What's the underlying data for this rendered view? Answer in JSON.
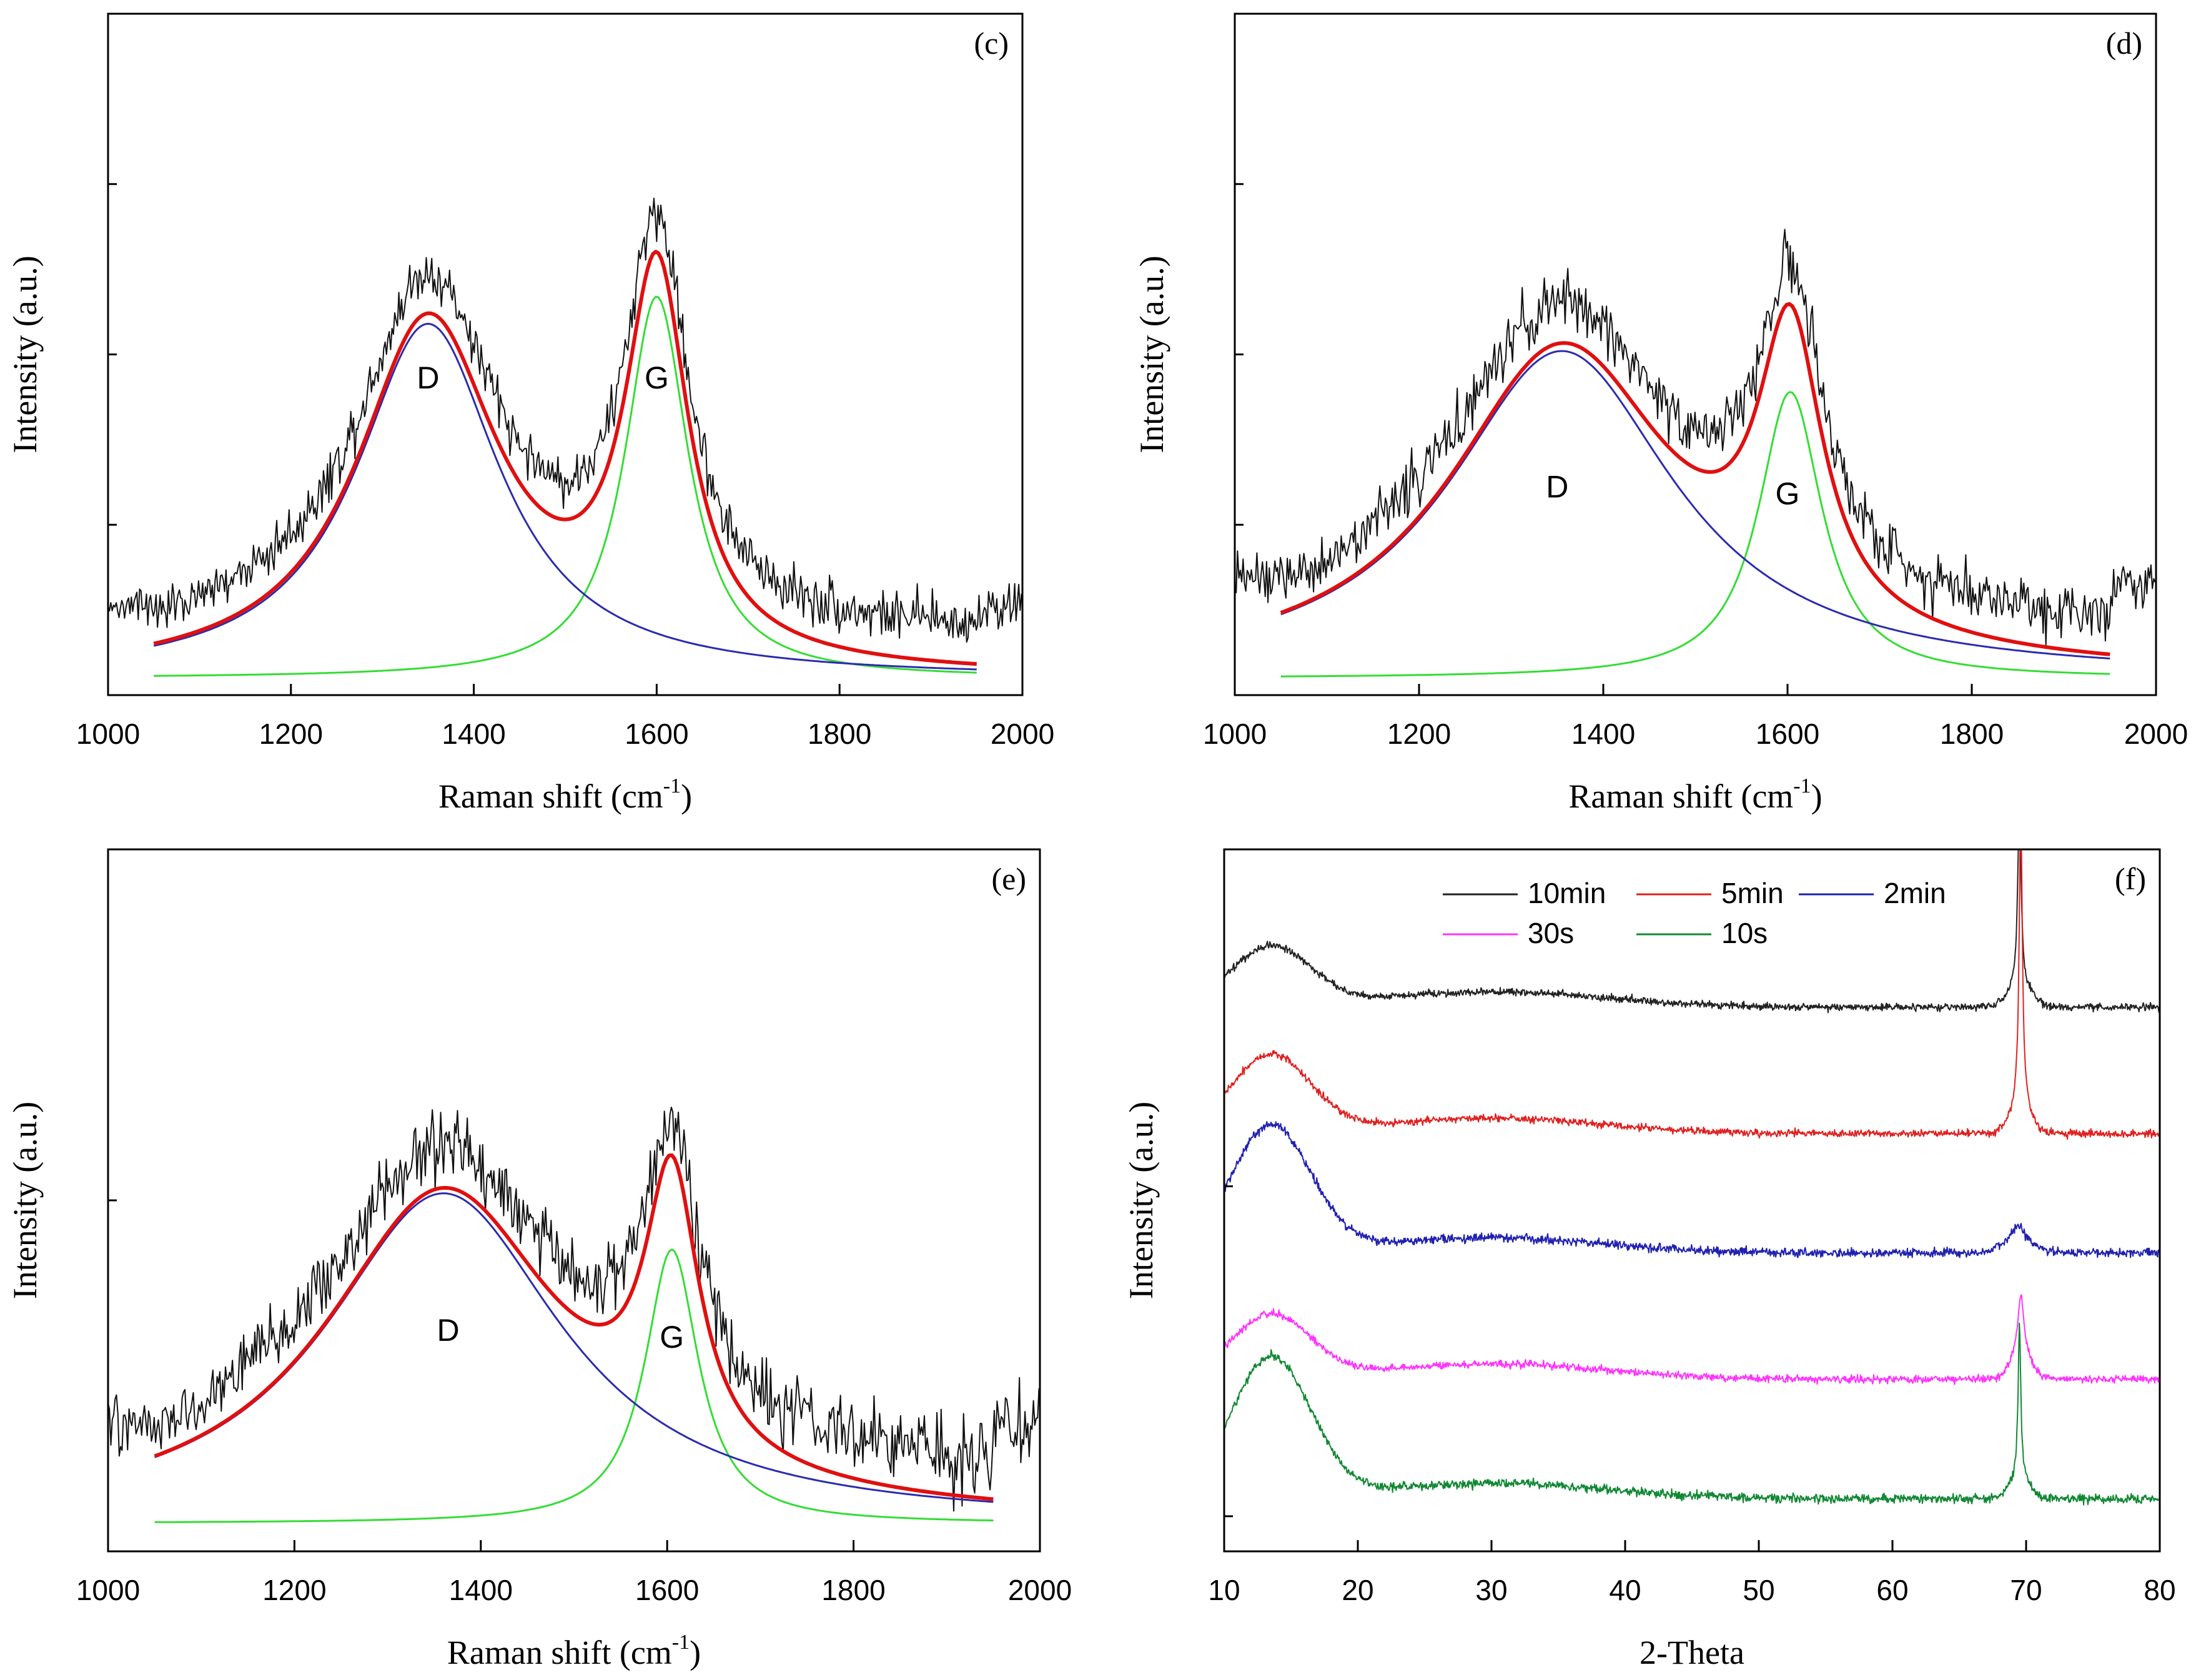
{
  "chart_data": [
    {
      "type": "line",
      "panel": "(c)",
      "xlabel": "Raman shift (cm",
      "xlabel_sup": "-1",
      "xlabel_close": ")",
      "ylabel": "Intensity (a.u.)",
      "xlim": [
        1000,
        2000
      ],
      "ylim": [
        0,
        100
      ],
      "xticks": [
        1000,
        1200,
        1400,
        1600,
        1800,
        2000
      ],
      "yticks": [
        25,
        50,
        75
      ],
      "peak_labels": [
        {
          "text": "D",
          "x": 1350,
          "y": 45
        },
        {
          "text": "G",
          "x": 1600,
          "y": 45
        }
      ],
      "fit_range": [
        1050,
        1950
      ],
      "background_noise": {
        "base": 13,
        "noise": 3.5,
        "x": [
          1000,
          2000
        ]
      },
      "series": [
        {
          "name": "raw",
          "color": "#111111",
          "kind": "noisy"
        },
        {
          "name": "D fit",
          "color": "#2b2bb0",
          "center": 1350,
          "hwhm": 95,
          "height": 52,
          "baseline": 2.5
        },
        {
          "name": "G fit",
          "color": "#33dd33",
          "center": 1600,
          "hwhm": 42,
          "height": 56,
          "baseline": 2.5
        },
        {
          "name": "sum fit",
          "color": "#e01010",
          "kind": "sum"
        }
      ]
    },
    {
      "type": "line",
      "panel": "(d)",
      "xlabel": "Raman shift (cm",
      "xlabel_sup": "-1",
      "xlabel_close": ")",
      "ylabel": "Intensity (a.u.)",
      "xlim": [
        1000,
        2000
      ],
      "ylim": [
        0,
        100
      ],
      "xticks": [
        1000,
        1200,
        1400,
        1600,
        1800,
        2000
      ],
      "yticks": [
        25,
        50,
        75
      ],
      "peak_labels": [
        {
          "text": "D",
          "x": 1350,
          "y": 29
        },
        {
          "text": "G",
          "x": 1600,
          "y": 28
        }
      ],
      "fit_range": [
        1050,
        1950
      ],
      "background_noise": {
        "base": 17,
        "noise": 4,
        "x": [
          1000,
          2000
        ]
      },
      "series": [
        {
          "name": "raw",
          "color": "#111111",
          "kind": "noisy"
        },
        {
          "name": "D fit",
          "color": "#2b2bb0",
          "center": 1355,
          "hwhm": 150,
          "height": 48,
          "baseline": 2.5
        },
        {
          "name": "G fit",
          "color": "#33dd33",
          "center": 1603,
          "hwhm": 42,
          "height": 42,
          "baseline": 2.5
        },
        {
          "name": "sum fit",
          "color": "#e01010",
          "kind": "sum"
        }
      ]
    },
    {
      "type": "line",
      "panel": "(e)",
      "xlabel": "Raman shift (cm",
      "xlabel_sup": "-1",
      "xlabel_close": ")",
      "ylabel": "Intensity (a.u.)",
      "xlim": [
        1000,
        2000
      ],
      "ylim": [
        0,
        100
      ],
      "xticks": [
        1000,
        1200,
        1400,
        1600,
        1800,
        2000
      ],
      "yticks": [
        50
      ],
      "peak_labels": [
        {
          "text": "D",
          "x": 1365,
          "y": 30
        },
        {
          "text": "G",
          "x": 1605,
          "y": 29
        }
      ],
      "fit_range": [
        1050,
        1950
      ],
      "background_noise": {
        "base": 18,
        "noise": 5,
        "x": [
          1000,
          2000
        ]
      },
      "series": [
        {
          "name": "raw",
          "color": "#111111",
          "kind": "noisy"
        },
        {
          "name": "D fit",
          "color": "#2b2bb0",
          "center": 1360,
          "hwhm": 155,
          "height": 47,
          "baseline": 4
        },
        {
          "name": "G fit",
          "color": "#33dd33",
          "center": 1605,
          "hwhm": 35,
          "height": 39,
          "baseline": 4
        },
        {
          "name": "sum fit",
          "color": "#e01010",
          "kind": "sum"
        }
      ]
    },
    {
      "type": "line",
      "panel": "(f)",
      "xlabel": "2-Theta",
      "ylabel": "Intensity (a.u.)",
      "xlim": [
        10,
        80
      ],
      "ylim": [
        0,
        100
      ],
      "xticks": [
        10,
        20,
        30,
        40,
        50,
        60,
        70,
        80
      ],
      "yticks": [
        5,
        52
      ],
      "legend": [
        {
          "label": "10min",
          "color": "#222222"
        },
        {
          "label": "5min",
          "color": "#e02020"
        },
        {
          "label": "2min",
          "color": "#2020b0"
        },
        {
          "label": "30s",
          "color": "#ff33ff"
        },
        {
          "label": "10s",
          "color": "#118833"
        }
      ],
      "series": [
        {
          "name": "10min",
          "color": "#222222",
          "offset": 77.5,
          "hump": 8.5,
          "peak_pos": 69.5,
          "peak_height": 26,
          "peak_width": 0.15,
          "broad_height": 3,
          "broad_width": 1.2,
          "noise": 0.5
        },
        {
          "name": "5min",
          "color": "#e02020",
          "offset": 59.5,
          "hump": 11,
          "peak_pos": 69.6,
          "peak_height": 42,
          "peak_width": 0.14,
          "broad_height": 4,
          "broad_width": 1.0,
          "noise": 0.5
        },
        {
          "name": "2min",
          "color": "#2020b0",
          "offset": 42.5,
          "hump": 18,
          "peak_pos": 69.4,
          "peak_height": 2,
          "peak_width": 0.5,
          "broad_height": 2,
          "broad_width": 1.5,
          "noise": 0.6
        },
        {
          "name": "30s",
          "color": "#ff33ff",
          "offset": 24.5,
          "hump": 9,
          "peak_pos": 69.6,
          "peak_height": 8,
          "peak_width": 0.25,
          "broad_height": 4,
          "broad_width": 1.0,
          "noise": 0.5
        },
        {
          "name": "10s",
          "color": "#118833",
          "offset": 7.5,
          "hump": 20,
          "peak_pos": 69.5,
          "peak_height": 22,
          "peak_width": 0.12,
          "broad_height": 3,
          "broad_width": 1.0,
          "noise": 0.6
        }
      ]
    }
  ]
}
